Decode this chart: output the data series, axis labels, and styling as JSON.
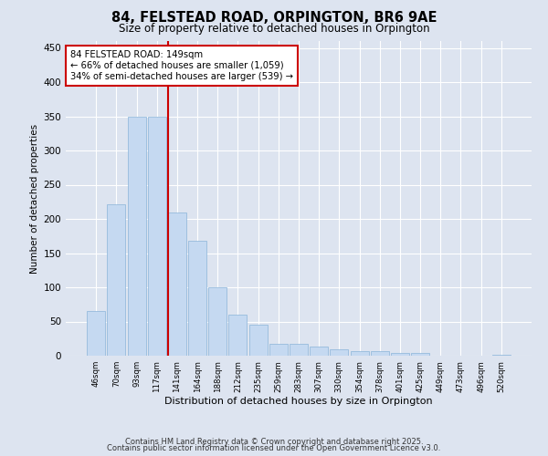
{
  "title_line1": "84, FELSTEAD ROAD, ORPINGTON, BR6 9AE",
  "title_line2": "Size of property relative to detached houses in Orpington",
  "xlabel": "Distribution of detached houses by size in Orpington",
  "ylabel": "Number of detached properties",
  "categories": [
    "46sqm",
    "70sqm",
    "93sqm",
    "117sqm",
    "141sqm",
    "164sqm",
    "188sqm",
    "212sqm",
    "235sqm",
    "259sqm",
    "283sqm",
    "307sqm",
    "330sqm",
    "354sqm",
    "378sqm",
    "401sqm",
    "425sqm",
    "449sqm",
    "473sqm",
    "496sqm",
    "520sqm"
  ],
  "values": [
    65,
    222,
    350,
    350,
    210,
    168,
    100,
    60,
    45,
    18,
    18,
    14,
    9,
    7,
    7,
    4,
    4,
    0,
    0,
    0,
    2
  ],
  "bar_color": "#c5d9f1",
  "bar_edge_color": "#8ab4d9",
  "vline_color": "#cc0000",
  "annotation_line1": "84 FELSTEAD ROAD: 149sqm",
  "annotation_line2": "← 66% of detached houses are smaller (1,059)",
  "annotation_line3": "34% of semi-detached houses are larger (539) →",
  "annotation_box_color": "#cc0000",
  "ylim": [
    0,
    460
  ],
  "yticks": [
    0,
    50,
    100,
    150,
    200,
    250,
    300,
    350,
    400,
    450
  ],
  "fig_bg_color": "#dde4f0",
  "plot_bg_color": "#dde4f0",
  "grid_color": "#ffffff",
  "footer_line1": "Contains HM Land Registry data © Crown copyright and database right 2025.",
  "footer_line2": "Contains public sector information licensed under the Open Government Licence v3.0."
}
